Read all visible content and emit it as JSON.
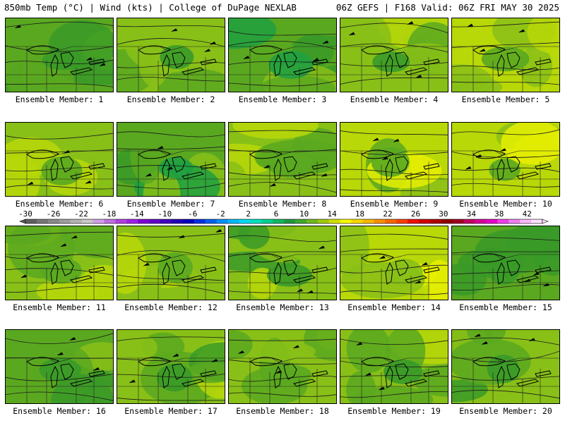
{
  "header": {
    "left": "850mb Temp (°C) | Wind (kts) | College of DuPage NEXLAB",
    "right": "06Z GEFS | F168 Valid: 06Z FRI MAY 30 2025"
  },
  "members": [
    {
      "label": "Ensemble Member: 1",
      "temp": 9
    },
    {
      "label": "Ensemble Member: 2",
      "temp": 10
    },
    {
      "label": "Ensemble Member: 3",
      "temp": 8
    },
    {
      "label": "Ensemble Member: 4",
      "temp": 10
    },
    {
      "label": "Ensemble Member: 5",
      "temp": 12
    },
    {
      "label": "Ensemble Member: 6",
      "temp": 11
    },
    {
      "label": "Ensemble Member: 7",
      "temp": 8
    },
    {
      "label": "Ensemble Member: 8",
      "temp": 11
    },
    {
      "label": "Ensemble Member: 9",
      "temp": 12
    },
    {
      "label": "Ensemble Member: 10",
      "temp": 12
    },
    {
      "label": "Ensemble Member: 11",
      "temp": 11
    },
    {
      "label": "Ensemble Member: 12",
      "temp": 11
    },
    {
      "label": "Ensemble Member: 13",
      "temp": 10
    },
    {
      "label": "Ensemble Member: 14",
      "temp": 13
    },
    {
      "label": "Ensemble Member: 15",
      "temp": 9
    },
    {
      "label": "Ensemble Member: 16",
      "temp": 9
    },
    {
      "label": "Ensemble Member: 17",
      "temp": 10
    },
    {
      "label": "Ensemble Member: 18",
      "temp": 11
    },
    {
      "label": "Ensemble Member: 19",
      "temp": 10
    },
    {
      "label": "Ensemble Member: 20",
      "temp": 10
    }
  ],
  "colorbar": {
    "ticks": [
      "-30",
      "-26",
      "-22",
      "-18",
      "-14",
      "-10",
      "-6",
      "-2",
      "2",
      "6",
      "10",
      "14",
      "18",
      "22",
      "26",
      "30",
      "34",
      "38",
      "42"
    ],
    "colors": [
      "#606060",
      "#777777",
      "#8a8a8a",
      "#9e9e9e",
      "#b3b3b3",
      "#c8c8c8",
      "#d2a0e6",
      "#c070e0",
      "#b040e0",
      "#a020e8",
      "#8000d8",
      "#6000c8",
      "#4000c0",
      "#2000b8",
      "#0000c0",
      "#0030e0",
      "#0060f0",
      "#0090f8",
      "#00b8f8",
      "#00d8f0",
      "#00e0c0",
      "#00d090",
      "#10b860",
      "#209840",
      "#40a830",
      "#70b820",
      "#a0c810",
      "#d0e000",
      "#f8f800",
      "#f8d800",
      "#f8b800",
      "#f89000",
      "#f86800",
      "#f84000",
      "#f01000",
      "#d00000",
      "#b00000",
      "#900000",
      "#a00020",
      "#c00060",
      "#d80098",
      "#e800c8",
      "#f040e8",
      "#f080f0",
      "#f8b8f8",
      "#fce0fc"
    ]
  }
}
